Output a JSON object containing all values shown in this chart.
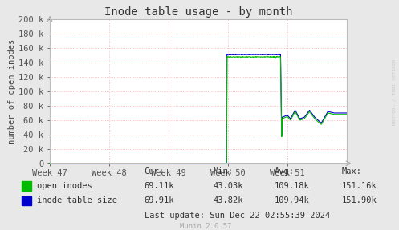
{
  "title": "Inode table usage - by month",
  "ylabel": "number of open inodes",
  "background_color": "#e8e8e8",
  "plot_bg_color": "#ffffff",
  "grid_color": "#ffaaaa",
  "ylim": [
    0,
    200000
  ],
  "yticks": [
    0,
    20000,
    40000,
    60000,
    80000,
    100000,
    120000,
    140000,
    160000,
    180000,
    200000
  ],
  "ytick_labels": [
    "0",
    "20 k",
    "40 k",
    "60 k",
    "80 k",
    "100 k",
    "120 k",
    "140 k",
    "160 k",
    "180 k",
    "200 k"
  ],
  "xtick_labels": [
    "Week 47",
    "Week 48",
    "Week 49",
    "Week 50",
    "Week 51"
  ],
  "xtick_positions": [
    0.0,
    0.2,
    0.4,
    0.6,
    0.8
  ],
  "title_fontsize": 10,
  "axis_label_fontsize": 7.5,
  "tick_fontsize": 7.5,
  "legend_fontsize": 7.5,
  "line_color_green": "#00bb00",
  "line_color_blue": "#0000cc",
  "legend_labels": [
    "open inodes",
    "inode table size"
  ],
  "stats_headers": [
    "Cur:",
    "Min:",
    "Avg:",
    "Max:"
  ],
  "stats_open_inodes": [
    "69.11k",
    "43.03k",
    "109.18k",
    "151.16k"
  ],
  "stats_inode_table": [
    "69.91k",
    "43.82k",
    "109.94k",
    "151.90k"
  ],
  "last_update": "Last update: Sun Dec 22 02:55:39 2024",
  "munin_version": "Munin 2.0.57",
  "watermark": "RRDTOOL / TOBI OETIKER"
}
